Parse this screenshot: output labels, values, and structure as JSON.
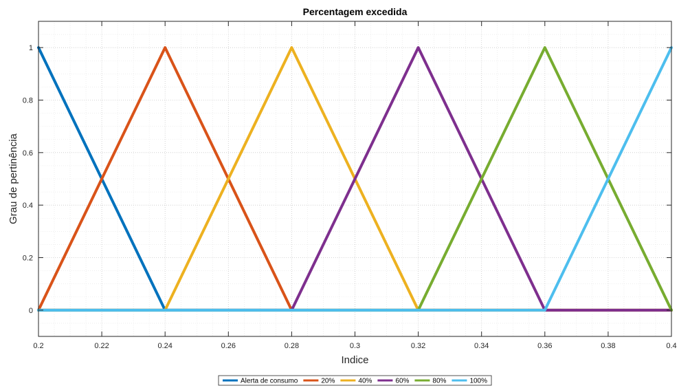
{
  "chart_data": {
    "type": "line",
    "title": "Percentagem excedida",
    "xlabel": "Indice",
    "ylabel": "Grau de pertinência",
    "xlim": [
      0.2,
      0.4
    ],
    "ylim": [
      -0.1,
      1.1
    ],
    "xticks": [
      "0.2",
      "0.22",
      "0.24",
      "0.26",
      "0.28",
      "0.3",
      "0.32",
      "0.34",
      "0.36",
      "0.38",
      "0.4"
    ],
    "yticks": [
      "0",
      "0.2",
      "0.4",
      "0.6",
      "0.8",
      "1"
    ],
    "grid": "major and minor, dotted",
    "legend_position": "bottom, horizontal",
    "series": [
      {
        "name": "Alerta de consumo",
        "color": "#0072BD",
        "x": [
          0.2,
          0.24,
          0.4
        ],
        "y": [
          1,
          0,
          0
        ]
      },
      {
        "name": "20%",
        "color": "#D95319",
        "x": [
          0.2,
          0.24,
          0.28,
          0.4
        ],
        "y": [
          0,
          1,
          0,
          0
        ]
      },
      {
        "name": "40%",
        "color": "#EDB120",
        "x": [
          0.2,
          0.24,
          0.28,
          0.32,
          0.4
        ],
        "y": [
          0,
          0,
          1,
          0,
          0
        ]
      },
      {
        "name": "60%",
        "color": "#7E2F8E",
        "x": [
          0.2,
          0.28,
          0.32,
          0.36,
          0.4
        ],
        "y": [
          0,
          0,
          1,
          0,
          0
        ]
      },
      {
        "name": "80%",
        "color": "#77AC30",
        "x": [
          0.2,
          0.32,
          0.36,
          0.4
        ],
        "y": [
          0,
          0,
          1,
          0
        ]
      },
      {
        "name": "100%",
        "color": "#4DBEEE",
        "x": [
          0.2,
          0.36,
          0.4
        ],
        "y": [
          0,
          0,
          1
        ]
      }
    ]
  }
}
